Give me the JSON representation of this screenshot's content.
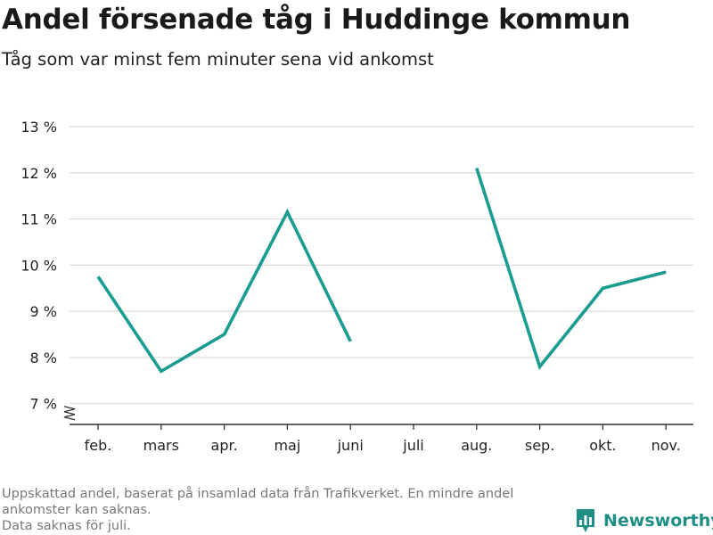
{
  "header": {
    "title": "Andel försenade tåg i Huddinge kommun",
    "subtitle": "Tåg som var minst fem minuter sena vid ankomst"
  },
  "footer": {
    "note_line1": "Uppskattad andel, baserat på insamlad data från Trafikverket. En mindre andel",
    "note_line2": "ankomster kan saknas.",
    "note_line3": "Data saknas för juli.",
    "brand": "Newsworthy"
  },
  "colors": {
    "line": "#1a9c91",
    "grid": "#d9d9d9",
    "axis": "#333333",
    "brand": "#1f8f86"
  },
  "icons": {
    "brand_logo": "bar-chart-speech-bubble-icon",
    "axis_break": "zigzag-axis-break-icon"
  },
  "chart_data": {
    "type": "line",
    "categories": [
      "feb.",
      "mars",
      "apr.",
      "maj",
      "juni",
      "juli",
      "aug.",
      "sep.",
      "okt.",
      "nov."
    ],
    "series": [
      {
        "values": [
          9.75,
          7.7,
          8.5,
          11.15,
          8.35,
          null,
          12.1,
          7.8,
          9.5,
          9.85
        ]
      }
    ],
    "yticks": [
      7,
      8,
      9,
      10,
      11,
      12,
      13
    ],
    "ytick_labels": [
      "7 %",
      "8 %",
      "9 %",
      "10 %",
      "11 %",
      "12 %",
      "13 %"
    ],
    "ylim": [
      6.55,
      13
    ],
    "y_axis_break": true,
    "grid": true,
    "legend": "none"
  }
}
